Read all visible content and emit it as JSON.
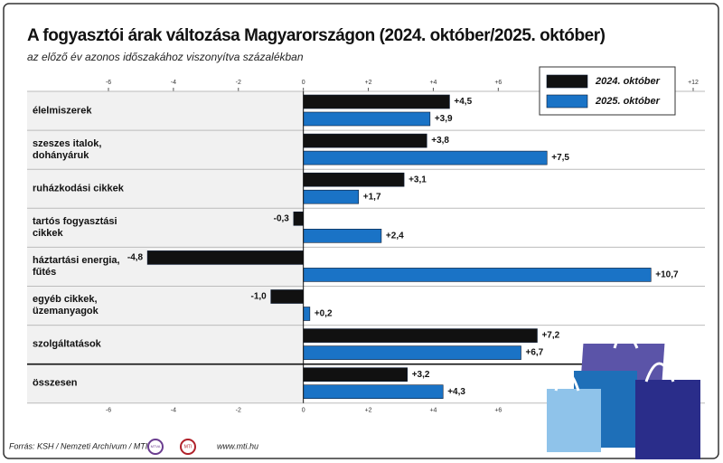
{
  "chart_data": {
    "type": "hbar",
    "title": "A fogyasztói árak változása Magyarországon (2024. október/2025. október)",
    "subtitle": "az előző év azonos időszakához viszonyítva százalékban",
    "categories": [
      "élelmiszerek",
      "szeszes italok,\ndohányáruk",
      "ruházkodási cikkek",
      "tartós fogyasztási\ncikkek",
      "háztartási energia,\nfűtés",
      "egyéb cikkek,\nüzemanyagok",
      "szolgáltatások",
      "összesen"
    ],
    "series": [
      {
        "name": "2024. október",
        "color": "#111111",
        "values": [
          4.5,
          3.8,
          3.1,
          -0.3,
          -4.8,
          -1.0,
          7.2,
          3.2
        ],
        "value_labels": [
          "+4,5",
          "+3,8",
          "+3,1",
          "-0,3",
          "-4,8",
          "-1,0",
          "+7,2",
          "+3,2"
        ]
      },
      {
        "name": "2025. október",
        "color": "#1a73c6",
        "values": [
          3.9,
          7.5,
          1.7,
          2.4,
          10.7,
          0.2,
          6.7,
          4.3
        ],
        "value_labels": [
          "+3,9",
          "+7,5",
          "+1,7",
          "+2,4",
          "+10,7",
          "+0,2",
          "+6,7",
          "+4,3"
        ]
      }
    ],
    "xlim": [
      -6,
      12
    ],
    "xticks": [
      -6,
      -4,
      -2,
      0,
      {
        "value": 2,
        "label": "+2"
      },
      {
        "value": 4,
        "label": "+4"
      },
      {
        "value": 6,
        "label": "+6"
      },
      {
        "value": 12,
        "label": "+12"
      }
    ],
    "legend": "top-right",
    "source": "Forrás: KSH / Nemzeti Archívum / MTI",
    "logos": [
      "MTVA",
      "MTI"
    ],
    "website": "www.mti.hu"
  }
}
